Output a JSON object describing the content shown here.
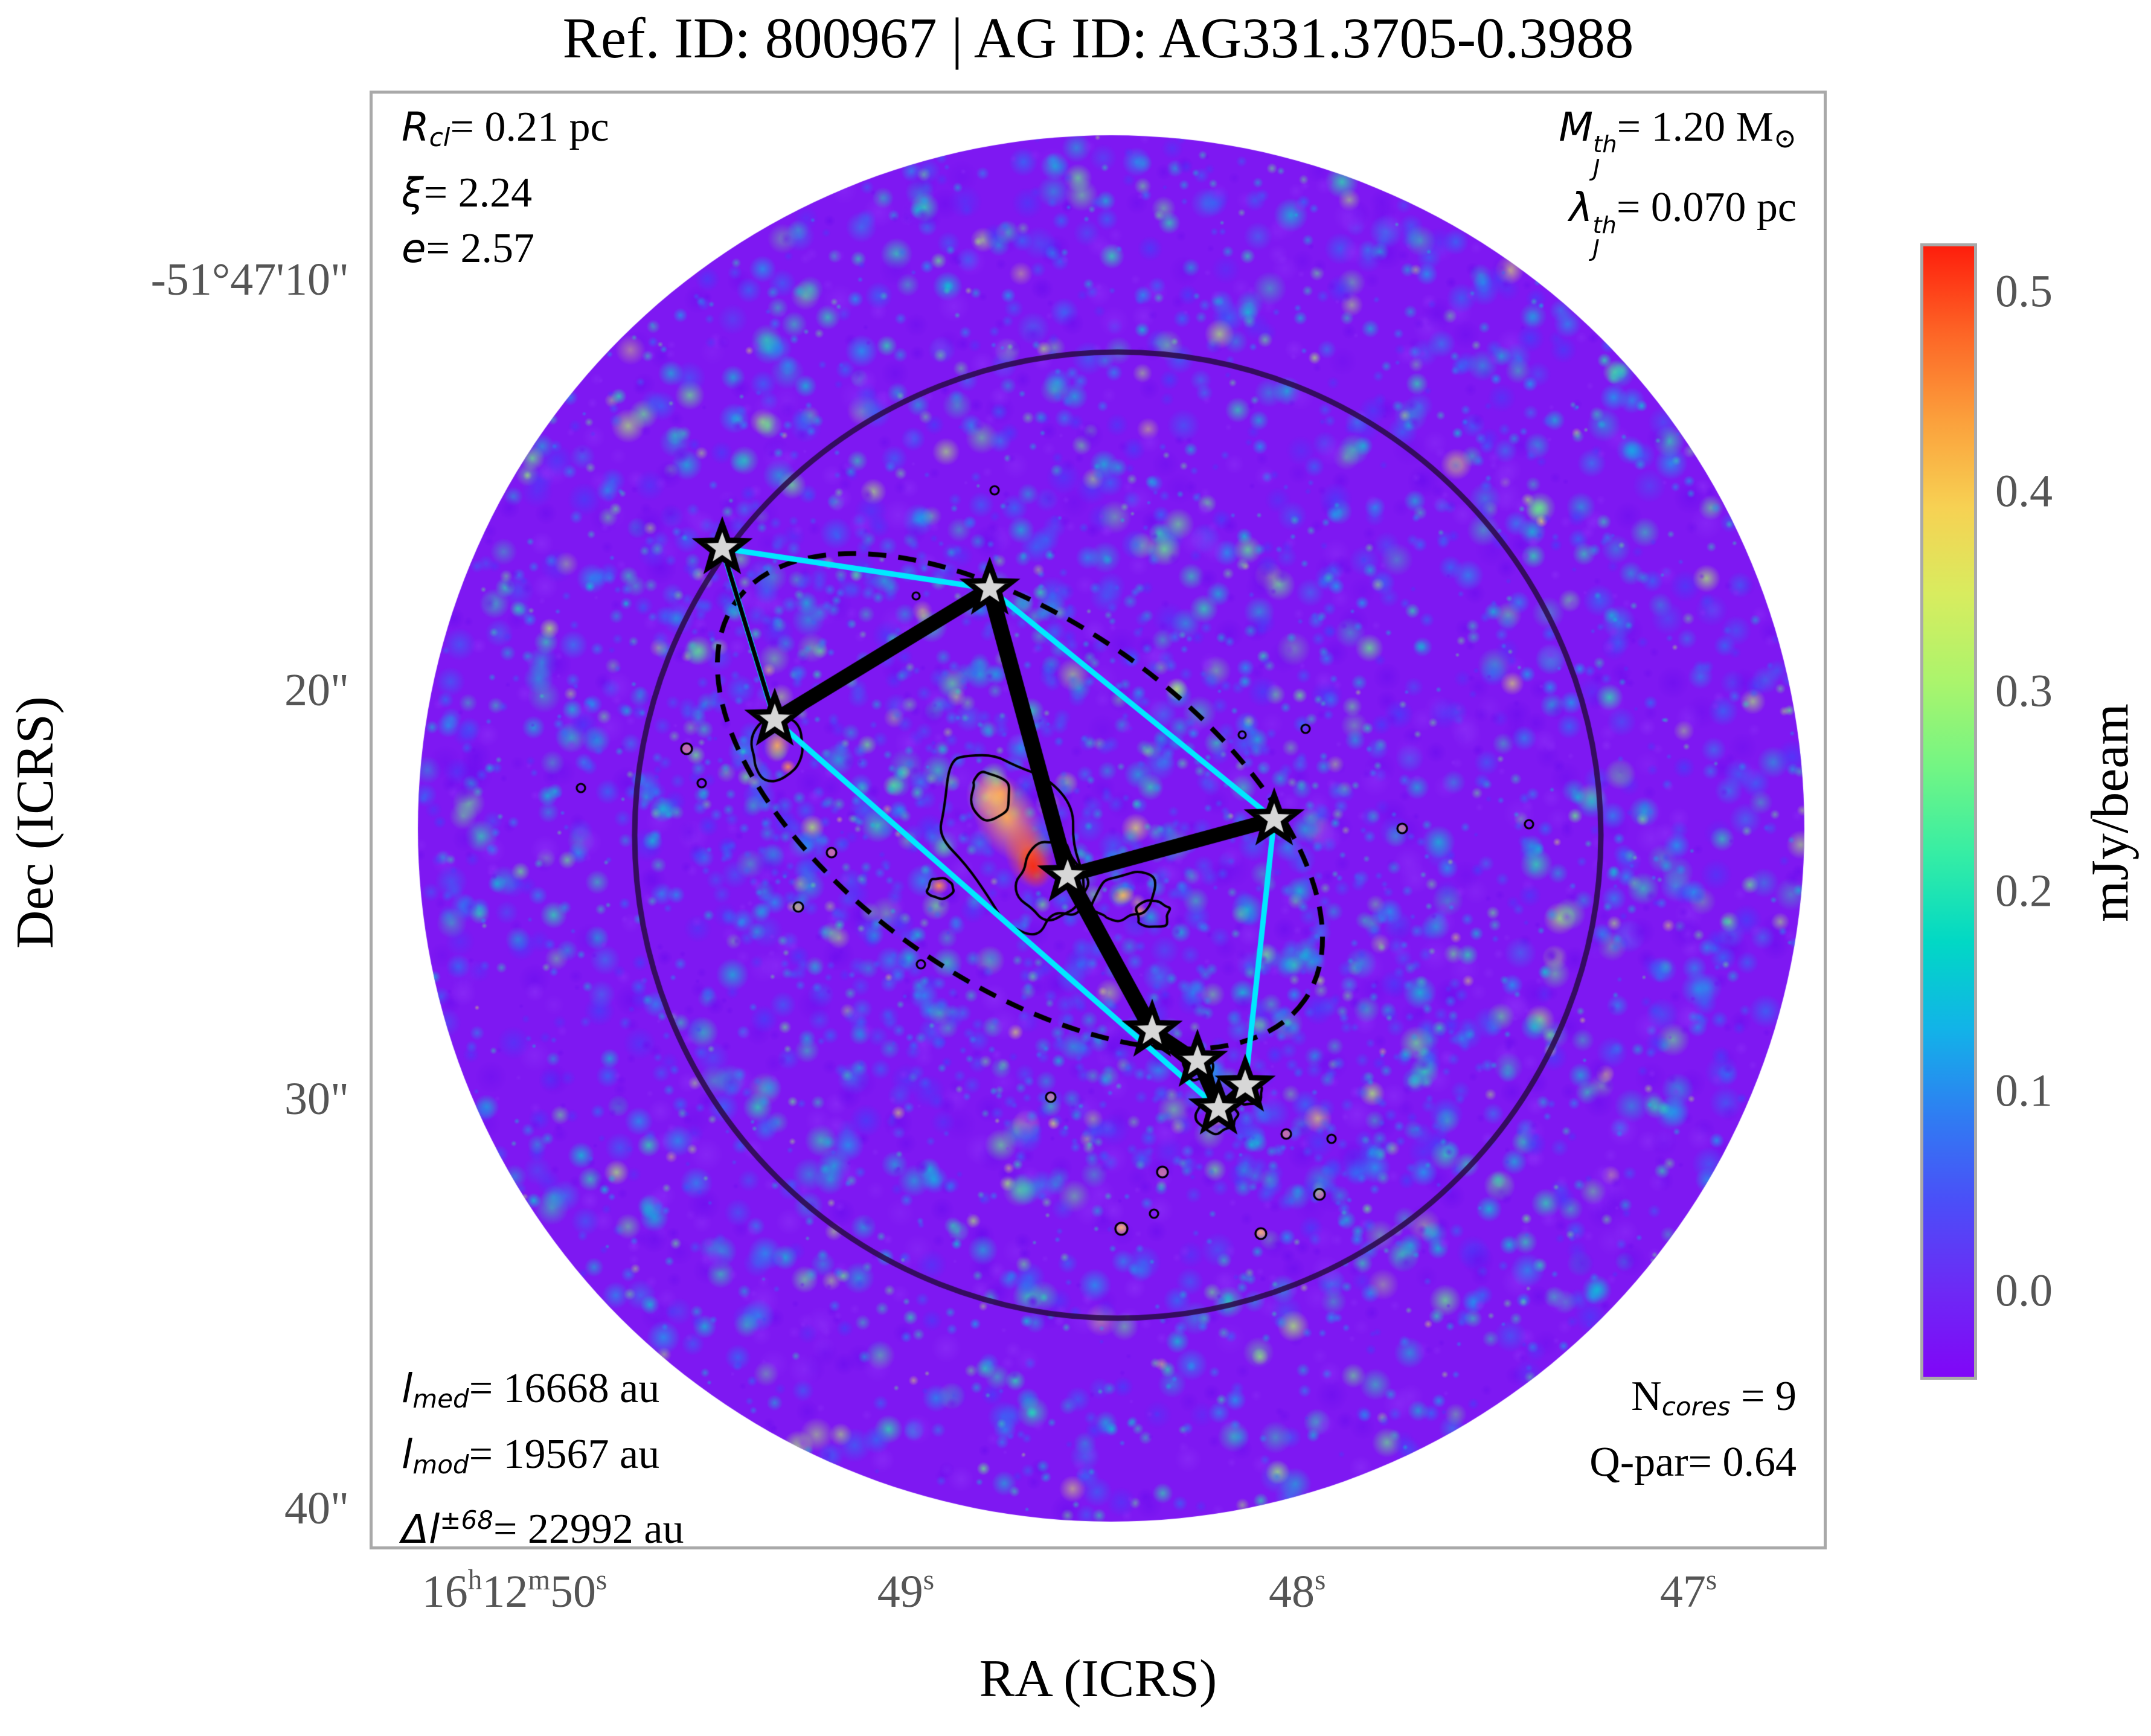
{
  "title": "Ref. ID: 800967 | AG ID: AG331.3705-0.3988",
  "axes": {
    "x_label": "RA (ICRS)",
    "y_label": "Dec (ICRS)"
  },
  "colorbar": {
    "label": "mJy/beam",
    "ticks": [
      {
        "t": "0.5",
        "f": 0.0425
      },
      {
        "t": "0.4",
        "f": 0.2184
      },
      {
        "t": "0.3",
        "f": 0.3943
      },
      {
        "t": "0.2",
        "f": 0.5702
      },
      {
        "t": "0.1",
        "f": 0.746
      },
      {
        "t": "0.0",
        "f": 0.9218
      }
    ],
    "gradient": [
      "#8006f7",
      "#6d2af5",
      "#4b4ef8",
      "#2f7df2",
      "#12b3e8",
      "#01d8c5",
      "#35eda5",
      "#72f584",
      "#abf46c",
      "#d8ec5f",
      "#f7d153",
      "#fba03c",
      "#fd6526",
      "#fe1e0c"
    ]
  },
  "x_ticks": [
    {
      "f": 0.0995,
      "parts": [
        {
          "t": "16",
          "s": "n"
        },
        {
          "t": "h",
          "s": "p"
        },
        {
          "t": "12",
          "s": "n"
        },
        {
          "t": "m",
          "s": "p"
        },
        {
          "t": "50",
          "s": "n"
        },
        {
          "t": "s",
          "s": "p"
        }
      ]
    },
    {
      "f": 0.368,
      "parts": [
        {
          "t": "49",
          "s": "n"
        },
        {
          "t": "s",
          "s": "p"
        }
      ]
    },
    {
      "f": 0.6366,
      "parts": [
        {
          "t": "48",
          "s": "n"
        },
        {
          "t": "s",
          "s": "p"
        }
      ]
    },
    {
      "f": 0.9051,
      "parts": [
        {
          "t": "47",
          "s": "n"
        },
        {
          "t": "s",
          "s": "p"
        }
      ]
    }
  ],
  "y_ticks": [
    {
      "f": 0.1304,
      "t": "-51°47'10\""
    },
    {
      "f": 0.4118,
      "t": "20\""
    },
    {
      "f": 0.692,
      "t": "30\""
    },
    {
      "f": 0.9727,
      "t": "40\""
    }
  ],
  "annotations": {
    "top_left": [
      [
        {
          "t": "R",
          "s": "i"
        },
        {
          "t": "cl",
          "s": "b"
        },
        {
          "t": "= 0.21 pc",
          "s": "n"
        }
      ],
      [
        {
          "t": "ξ",
          "s": "i"
        },
        {
          "t": "= 2.24",
          "s": "n"
        }
      ],
      [
        {
          "t": "e",
          "s": "i"
        },
        {
          "t": "= 2.57",
          "s": "n"
        }
      ]
    ],
    "top_right": [
      [
        {
          "t": "M",
          "s": "i"
        },
        {
          "top": "th",
          "bot": "J",
          "s": "k"
        },
        {
          "t": "= 1.20 M",
          "s": "n"
        },
        {
          "t": "⊙",
          "s": "b2"
        }
      ],
      [
        {
          "t": "λ",
          "s": "i"
        },
        {
          "top": "th",
          "bot": "J",
          "s": "k"
        },
        {
          "t": "= 0.070 pc",
          "s": "n"
        }
      ]
    ],
    "bottom_left": [
      [
        {
          "t": "l",
          "s": "i"
        },
        {
          "t": "med",
          "s": "b"
        },
        {
          "t": "= 16668 au",
          "s": "n"
        }
      ],
      [
        {
          "t": "l",
          "s": "i"
        },
        {
          "t": "mod",
          "s": "b"
        },
        {
          "t": "= 19567 au",
          "s": "n"
        }
      ],
      [
        {
          "t": "Δl",
          "s": "i"
        },
        {
          "t": "±68",
          "s": "p"
        },
        {
          "t": "= 22992 au",
          "s": "n"
        }
      ]
    ],
    "bottom_right": [
      [
        {
          "t": "N",
          "s": "n"
        },
        {
          "t": "cores",
          "s": "b"
        },
        {
          "t": " = 9",
          "s": "n"
        }
      ],
      [
        {
          "t": "Q-par= 0.64",
          "s": "n"
        }
      ]
    ]
  },
  "chart_data": {
    "type": "heatmap",
    "title": "Ref. ID: 800967 | AG ID: AG331.3705-0.3988",
    "xlabel": "RA (ICRS)",
    "ylabel": "Dec (ICRS)",
    "x_tick_values": [
      "16h12m50s",
      "16h12m49s",
      "16h12m48s",
      "16h12m47s"
    ],
    "y_tick_values": [
      "-51°47'10\"",
      "-51°47'20\"",
      "-51°47'30\"",
      "-51°47'40\""
    ],
    "colorbar": {
      "label": "mJy/beam",
      "ticks": [
        0.5,
        0.4,
        0.3,
        0.2,
        0.1,
        0.0
      ],
      "vmin": -0.04,
      "vmax": 0.52,
      "colormap": "rainbow"
    },
    "cluster_stats": {
      "R_cl_pc": 0.21,
      "xi": 2.24,
      "e": 2.57,
      "M_J_th_Msun": 1.2,
      "lambda_J_th_pc": 0.07,
      "l_med_au": 16668,
      "l_mod_au": 19567,
      "dl_pm68_au": 22992,
      "N_cores": 9,
      "Q_par": 0.64
    },
    "cores": [
      {
        "id": 1,
        "ra": "16h12m49.48s",
        "dec": "-51°47'16.5\"",
        "px": [
          579,
          753
        ]
      },
      {
        "id": 2,
        "ra": "16h12m48.79s",
        "dec": "-51°47'17.3\"",
        "px": [
          1022,
          820
        ]
      },
      {
        "id": 3,
        "ra": "16h12m49.34s",
        "dec": "-51°47'20.6\"",
        "px": [
          666,
          1037
        ]
      },
      {
        "id": 4,
        "ra": "16h12m48.07s",
        "dec": "-51°47'23.0\"",
        "px": [
          1493,
          1202
        ]
      },
      {
        "id": 5,
        "ra": "16h12m48.59s",
        "dec": "-51°47'24.4\"",
        "px": [
          1151,
          1295
        ]
      },
      {
        "id": 6,
        "ra": "16h12m48.38s",
        "dec": "-51°47'28.2\"",
        "px": [
          1291,
          1552
        ]
      },
      {
        "id": 7,
        "ra": "16h12m48.26s",
        "dec": "-51°47'29.0\"",
        "px": [
          1366,
          1602
        ]
      },
      {
        "id": 8,
        "ra": "16h12m48.14s",
        "dec": "-51°47'29.6\"",
        "px": [
          1445,
          1643
        ]
      },
      {
        "id": 9,
        "ra": "16h12m48.21s",
        "dec": "-51°47'30.1\"",
        "px": [
          1401,
          1681
        ]
      }
    ],
    "mst_edges": [
      [
        1,
        3
      ],
      [
        3,
        2
      ],
      [
        2,
        5
      ],
      [
        5,
        4
      ],
      [
        5,
        6
      ],
      [
        6,
        7
      ],
      [
        7,
        9
      ],
      [
        8,
        9
      ]
    ],
    "hull_cores": [
      1,
      2,
      4,
      8,
      9,
      3
    ],
    "render": {
      "plot": [
        612,
        150,
        2413,
        2416
      ],
      "field": {
        "c": [
          1223,
          1217
        ],
        "r": 1148,
        "base": "#7e18f2"
      },
      "inner_circle": {
        "c": [
          1234,
          1228
        ],
        "r": 800,
        "color": "rgba(43,10,74,0.88)",
        "w": 9
      },
      "ellipse": {
        "c": [
          1072,
          1172
        ],
        "rx": 575,
        "ry": 298,
        "rot": 35,
        "w": 8,
        "dash": [
          30,
          20
        ]
      },
      "hull": {
        "color": "#00e9ff",
        "w": 9
      },
      "mst": {
        "edges": [
          [
            0,
            2,
            7
          ],
          [
            2,
            1,
            24
          ],
          [
            1,
            4,
            26
          ],
          [
            4,
            3,
            24
          ],
          [
            4,
            5,
            26
          ],
          [
            5,
            6,
            22
          ],
          [
            6,
            8,
            20
          ],
          [
            7,
            8,
            16
          ]
        ]
      },
      "star": {
        "R": 40,
        "r": 16.5,
        "fill": "#d7d7d7",
        "stroke": "#000000",
        "sw": 9
      },
      "noise": {
        "seed": 11,
        "n1": 2600,
        "n2": 1900,
        "palette": [
          [
            "#6d0ef0",
            3
          ],
          [
            "#8a2cf7",
            3
          ],
          [
            "#4440fa",
            2
          ],
          [
            "#2f6ff5",
            2.5
          ],
          [
            "#15a9ec",
            2
          ],
          [
            "#06cfd2",
            2
          ],
          [
            "#27e8ac",
            1.5
          ],
          [
            "#67f287",
            1
          ],
          [
            "#aef46e",
            0.5
          ],
          [
            "#e3ef5f",
            0.15
          ]
        ],
        "band": {
          "c": [
            1100,
            1250
          ],
          "rx": 820,
          "ry": 430,
          "rot": 35,
          "n": 800
        }
      },
      "brights": [
        {
          "x": 1050,
          "y": 1198,
          "rx": 52,
          "ry": 80,
          "rot": -28,
          "c": "#ffab55",
          "a": 0.95
        },
        {
          "x": 1088,
          "y": 1262,
          "rx": 40,
          "ry": 58,
          "rot": -20,
          "c": "#ff6a2a",
          "a": 0.95
        },
        {
          "x": 1094,
          "y": 1280,
          "rx": 26,
          "ry": 36,
          "rot": -20,
          "c": "#f92c12",
          "a": 0.95
        },
        {
          "x": 1040,
          "y": 1160,
          "rx": 26,
          "ry": 26,
          "rot": 0,
          "c": "#ff9a4a",
          "a": 0.9
        },
        {
          "x": 1022,
          "y": 1162,
          "rx": 40,
          "ry": 46,
          "rot": 0,
          "c": "#ffc76e",
          "a": 0.7
        },
        {
          "x": 938,
          "y": 1312,
          "rx": 16,
          "ry": 14,
          "rot": 0,
          "c": "#ff9a4a",
          "a": 0.9
        },
        {
          "x": 1243,
          "y": 1328,
          "rx": 20,
          "ry": 15,
          "rot": -20,
          "c": "#ffb25c",
          "a": 0.9
        },
        {
          "x": 1270,
          "y": 1355,
          "rx": 14,
          "ry": 11,
          "rot": 0,
          "c": "#ffb25c",
          "a": 0.85
        },
        {
          "x": 670,
          "y": 1080,
          "rx": 22,
          "ry": 28,
          "rot": 10,
          "c": "#ffae58",
          "a": 0.9
        },
        {
          "x": 688,
          "y": 1115,
          "rx": 13,
          "ry": 12,
          "rot": 0,
          "c": "#ff9a4a",
          "a": 0.85
        },
        {
          "x": 1398,
          "y": 1692,
          "rx": 22,
          "ry": 18,
          "rot": 0,
          "c": "#ff9a4a",
          "a": 0.9
        },
        {
          "x": 1368,
          "y": 1610,
          "rx": 14,
          "ry": 12,
          "rot": 0,
          "c": "#ffb25c",
          "a": 0.85
        },
        {
          "x": 1452,
          "y": 1655,
          "rx": 12,
          "ry": 10,
          "rot": 0,
          "c": "#ffc76e",
          "a": 0.8
        },
        {
          "x": 1240,
          "y": 1878,
          "rx": 10,
          "ry": 8,
          "rot": 0,
          "c": "#ffc76e",
          "a": 0.8
        },
        {
          "x": 1471,
          "y": 1886,
          "rx": 11,
          "ry": 8,
          "rot": 0,
          "c": "#ffc76e",
          "a": 0.75
        }
      ],
      "contours": [
        {
          "x": 1062,
          "y": 1235,
          "rx": 100,
          "ry": 155,
          "rot": -28,
          "irr": 0.35
        },
        {
          "x": 1125,
          "y": 1305,
          "rx": 55,
          "ry": 60,
          "rot": 0,
          "irr": 0.4
        },
        {
          "x": 1022,
          "y": 1163,
          "rx": 34,
          "ry": 40,
          "rot": 0,
          "irr": 0.4
        },
        {
          "x": 668,
          "y": 1085,
          "rx": 42,
          "ry": 55,
          "rot": 10,
          "irr": 0.35
        },
        {
          "x": 1245,
          "y": 1330,
          "rx": 55,
          "ry": 40,
          "rot": -20,
          "irr": 0.5
        },
        {
          "x": 1292,
          "y": 1360,
          "rx": 30,
          "ry": 24,
          "rot": 0,
          "irr": 0.5
        },
        {
          "x": 1398,
          "y": 1690,
          "rx": 34,
          "ry": 30,
          "rot": 0,
          "irr": 0.4
        },
        {
          "x": 1368,
          "y": 1612,
          "rx": 26,
          "ry": 22,
          "rot": 0,
          "irr": 0.4
        },
        {
          "x": 1452,
          "y": 1655,
          "rx": 22,
          "ry": 20,
          "rot": 0,
          "irr": 0.4
        },
        {
          "x": 940,
          "y": 1315,
          "rx": 22,
          "ry": 18,
          "rot": 0,
          "irr": 0.4
        }
      ],
      "dots": [
        [
          520,
          1085,
          9
        ],
        [
          545,
          1142,
          7
        ],
        [
          760,
          1257,
          8
        ],
        [
          908,
          1442,
          7
        ],
        [
          1123,
          1662,
          8
        ],
        [
          1308,
          1786,
          9
        ],
        [
          1513,
          1723,
          8
        ],
        [
          1588,
          1731,
          7
        ],
        [
          1568,
          1823,
          9
        ],
        [
          1240,
          1880,
          10
        ],
        [
          1471,
          1888,
          9
        ],
        [
          1294,
          1855,
          7
        ],
        [
          1545,
          1052,
          7
        ],
        [
          1440,
          1062,
          6
        ],
        [
          1705,
          1217,
          8
        ],
        [
          1030,
          657,
          7
        ],
        [
          900,
          832,
          6
        ],
        [
          705,
          1347,
          8
        ],
        [
          1915,
          1210,
          7
        ],
        [
          345,
          1150,
          7
        ]
      ]
    }
  }
}
